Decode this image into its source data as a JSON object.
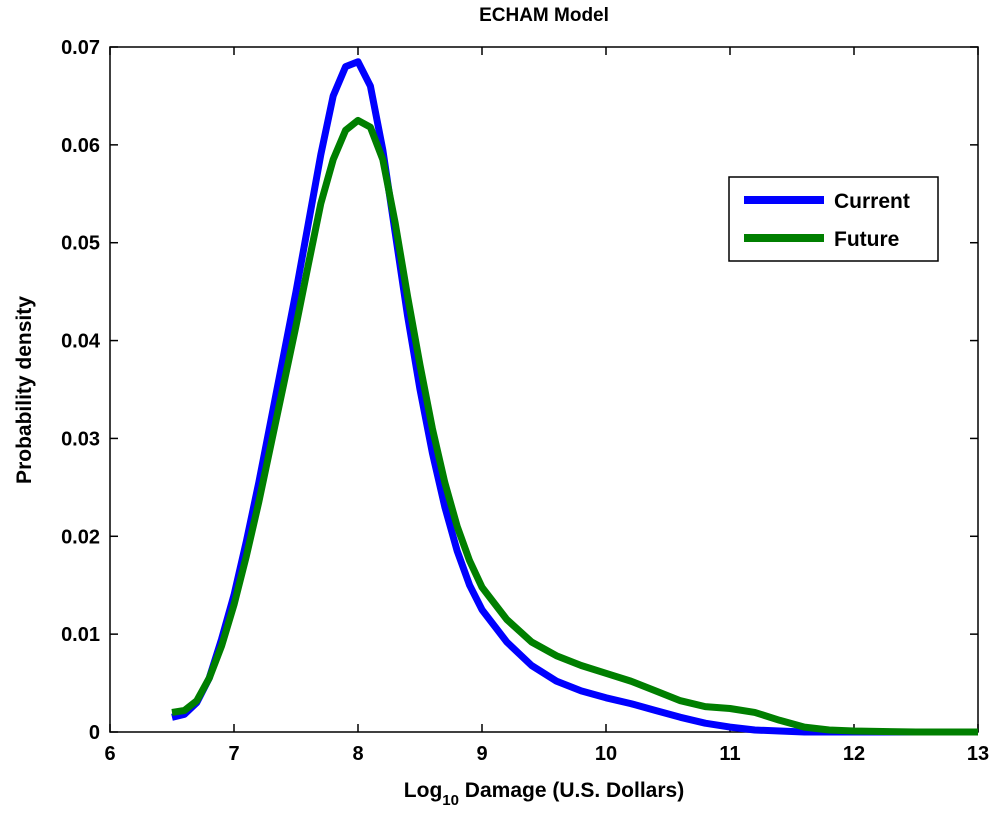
{
  "chart_data": {
    "type": "line",
    "title": "ECHAM Model",
    "xlabel": {
      "prefix": "Log",
      "subscript": "10",
      "suffix": " Damage (U.S. Dollars)"
    },
    "ylabel": "Probability density",
    "xlim": [
      6,
      13
    ],
    "ylim": [
      0,
      0.07
    ],
    "xticks": [
      "6",
      "7",
      "8",
      "9",
      "10",
      "11",
      "12",
      "13"
    ],
    "yticks": [
      "0",
      "0.01",
      "0.02",
      "0.03",
      "0.04",
      "0.05",
      "0.06",
      "0.07"
    ],
    "grid": false,
    "legend_position": "top-right",
    "series": [
      {
        "name": "Current",
        "color": "#0000ff",
        "x": [
          6.5,
          6.6,
          6.7,
          6.8,
          6.9,
          7.0,
          7.1,
          7.2,
          7.3,
          7.4,
          7.5,
          7.6,
          7.7,
          7.8,
          7.9,
          8.0,
          8.1,
          8.2,
          8.3,
          8.4,
          8.5,
          8.6,
          8.7,
          8.8,
          8.9,
          9.0,
          9.2,
          9.4,
          9.6,
          9.8,
          10.0,
          10.2,
          10.4,
          10.6,
          10.8,
          11.0,
          11.2,
          11.4,
          11.6,
          11.8,
          12.0,
          12.5,
          13.0
        ],
        "y": [
          0.0015,
          0.0018,
          0.003,
          0.0055,
          0.0095,
          0.014,
          0.0195,
          0.0255,
          0.032,
          0.0385,
          0.045,
          0.052,
          0.059,
          0.065,
          0.068,
          0.0685,
          0.066,
          0.0595,
          0.051,
          0.0425,
          0.035,
          0.0285,
          0.023,
          0.0185,
          0.015,
          0.0125,
          0.0092,
          0.0068,
          0.0052,
          0.0042,
          0.0035,
          0.0029,
          0.0022,
          0.0015,
          0.0009,
          0.0005,
          0.0002,
          0.0001,
          0.0,
          0.0,
          0.0,
          0.0,
          0.0
        ]
      },
      {
        "name": "Future",
        "color": "#007f00",
        "x": [
          6.5,
          6.6,
          6.7,
          6.8,
          6.9,
          7.0,
          7.1,
          7.2,
          7.3,
          7.4,
          7.5,
          7.6,
          7.7,
          7.8,
          7.9,
          8.0,
          8.1,
          8.2,
          8.3,
          8.4,
          8.5,
          8.6,
          8.7,
          8.8,
          8.9,
          9.0,
          9.2,
          9.4,
          9.6,
          9.8,
          10.0,
          10.2,
          10.4,
          10.6,
          10.8,
          11.0,
          11.2,
          11.4,
          11.6,
          11.8,
          12.0,
          12.5,
          13.0
        ],
        "y": [
          0.002,
          0.0022,
          0.0032,
          0.0055,
          0.0088,
          0.013,
          0.018,
          0.0235,
          0.0295,
          0.0355,
          0.0415,
          0.0478,
          0.054,
          0.0585,
          0.0615,
          0.0625,
          0.0618,
          0.0585,
          0.052,
          0.0445,
          0.0375,
          0.031,
          0.0255,
          0.021,
          0.0175,
          0.0148,
          0.0115,
          0.0092,
          0.0078,
          0.0068,
          0.006,
          0.0052,
          0.0042,
          0.0032,
          0.0026,
          0.0024,
          0.002,
          0.0012,
          0.0005,
          0.0002,
          0.0001,
          0.0,
          0.0
        ]
      }
    ]
  }
}
